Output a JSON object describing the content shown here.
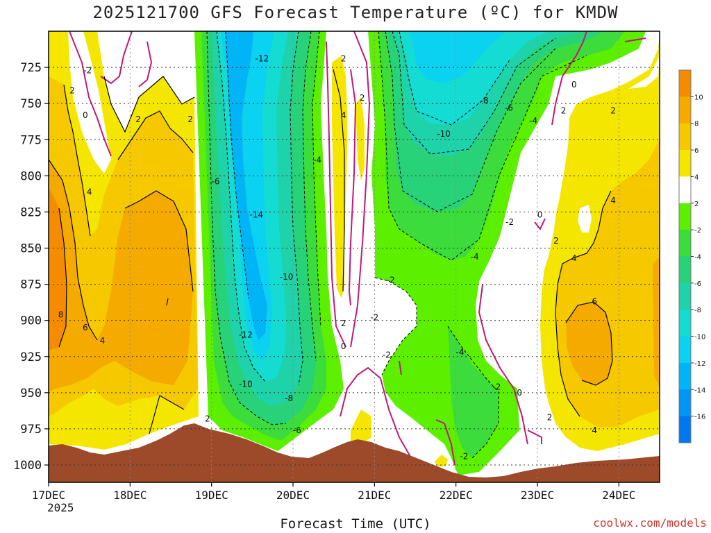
{
  "chart_data": {
    "type": "heatmap",
    "title": "2025121700 GFS Forecast Temperature (ºC) for KMDW",
    "xlabel": "Forecast Time (UTC)",
    "x_ticks": [
      "17DEC",
      "18DEC",
      "19DEC",
      "20DEC",
      "21DEC",
      "22DEC",
      "23DEC",
      "24DEC"
    ],
    "x_year_label": "2025",
    "y_ticks": [
      725,
      750,
      775,
      800,
      825,
      850,
      875,
      900,
      925,
      950,
      975,
      1000
    ],
    "y_range": [
      700,
      1012
    ],
    "y_reversed": true,
    "colorbar": {
      "ticks": [
        10,
        8,
        6,
        4,
        2,
        -2,
        -4,
        -6,
        -8,
        -10,
        -12,
        -14,
        -16
      ],
      "colors": [
        "#f58c00",
        "#f5aa00",
        "#f5c800",
        "#f5e600",
        "#ffffff",
        "#5cf000",
        "#3cdc3c",
        "#28d278",
        "#1ed2aa",
        "#14dcd2",
        "#0ad2f0",
        "#00b4f5",
        "#0096f5",
        "#0078f0"
      ]
    },
    "grid": true,
    "contour_labels": [
      {
        "x": 17.48,
        "p": 727,
        "v": "-2"
      },
      {
        "x": 17.29,
        "p": 741,
        "v": "2"
      },
      {
        "x": 17.45,
        "p": 758,
        "v": "0"
      },
      {
        "x": 18.1,
        "p": 761,
        "v": "2"
      },
      {
        "x": 18.74,
        "p": 761,
        "v": "2"
      },
      {
        "x": 17.5,
        "p": 811,
        "v": "4"
      },
      {
        "x": 17.15,
        "p": 896,
        "v": "8"
      },
      {
        "x": 17.45,
        "p": 905,
        "v": "6"
      },
      {
        "x": 17.66,
        "p": 914,
        "v": "4"
      },
      {
        "x": 18.95,
        "p": 968,
        "v": "2"
      },
      {
        "x": 19.62,
        "p": 719,
        "v": "-12"
      },
      {
        "x": 19.05,
        "p": 804,
        "v": "-6"
      },
      {
        "x": 19.55,
        "p": 827,
        "v": "-14"
      },
      {
        "x": 19.92,
        "p": 870,
        "v": "-10"
      },
      {
        "x": 19.42,
        "p": 910,
        "v": "-12"
      },
      {
        "x": 19.42,
        "p": 944,
        "v": "-10"
      },
      {
        "x": 19.95,
        "p": 954,
        "v": "-8"
      },
      {
        "x": 20.05,
        "p": 976,
        "v": "-6"
      },
      {
        "x": 20.3,
        "p": 789,
        "v": "-4"
      },
      {
        "x": 20.62,
        "p": 719,
        "v": "2"
      },
      {
        "x": 20.85,
        "p": 746,
        "v": "2"
      },
      {
        "x": 20.62,
        "p": 758,
        "v": "4"
      },
      {
        "x": 20.62,
        "p": 902,
        "v": "2"
      },
      {
        "x": 20.62,
        "p": 918,
        "v": "0"
      },
      {
        "x": 21.2,
        "p": 872,
        "v": "-2"
      },
      {
        "x": 21.0,
        "p": 898,
        "v": "-2"
      },
      {
        "x": 21.15,
        "p": 924,
        "v": "-2"
      },
      {
        "x": 22.35,
        "p": 748,
        "v": "-8"
      },
      {
        "x": 22.65,
        "p": 753,
        "v": "-6"
      },
      {
        "x": 21.85,
        "p": 771,
        "v": "-10"
      },
      {
        "x": 22.95,
        "p": 762,
        "v": "-4"
      },
      {
        "x": 23.45,
        "p": 737,
        "v": "0"
      },
      {
        "x": 23.32,
        "p": 755,
        "v": "2"
      },
      {
        "x": 22.23,
        "p": 856,
        "v": "-4"
      },
      {
        "x": 22.66,
        "p": 832,
        "v": "-2"
      },
      {
        "x": 23.03,
        "p": 827,
        "v": "0"
      },
      {
        "x": 23.23,
        "p": 845,
        "v": "2"
      },
      {
        "x": 23.45,
        "p": 857,
        "v": "4"
      },
      {
        "x": 22.05,
        "p": 922,
        "v": "-4"
      },
      {
        "x": 22.5,
        "p": 946,
        "v": "-2"
      },
      {
        "x": 22.78,
        "p": 950,
        "v": "0"
      },
      {
        "x": 23.15,
        "p": 967,
        "v": "2"
      },
      {
        "x": 23.7,
        "p": 887,
        "v": "6"
      },
      {
        "x": 23.7,
        "p": 976,
        "v": "4"
      },
      {
        "x": 23.93,
        "p": 817,
        "v": "4"
      },
      {
        "x": 23.93,
        "p": 755,
        "v": "2"
      },
      {
        "x": 22.1,
        "p": 994,
        "v": "-2"
      }
    ]
  },
  "credit": "coolwx.com/models"
}
